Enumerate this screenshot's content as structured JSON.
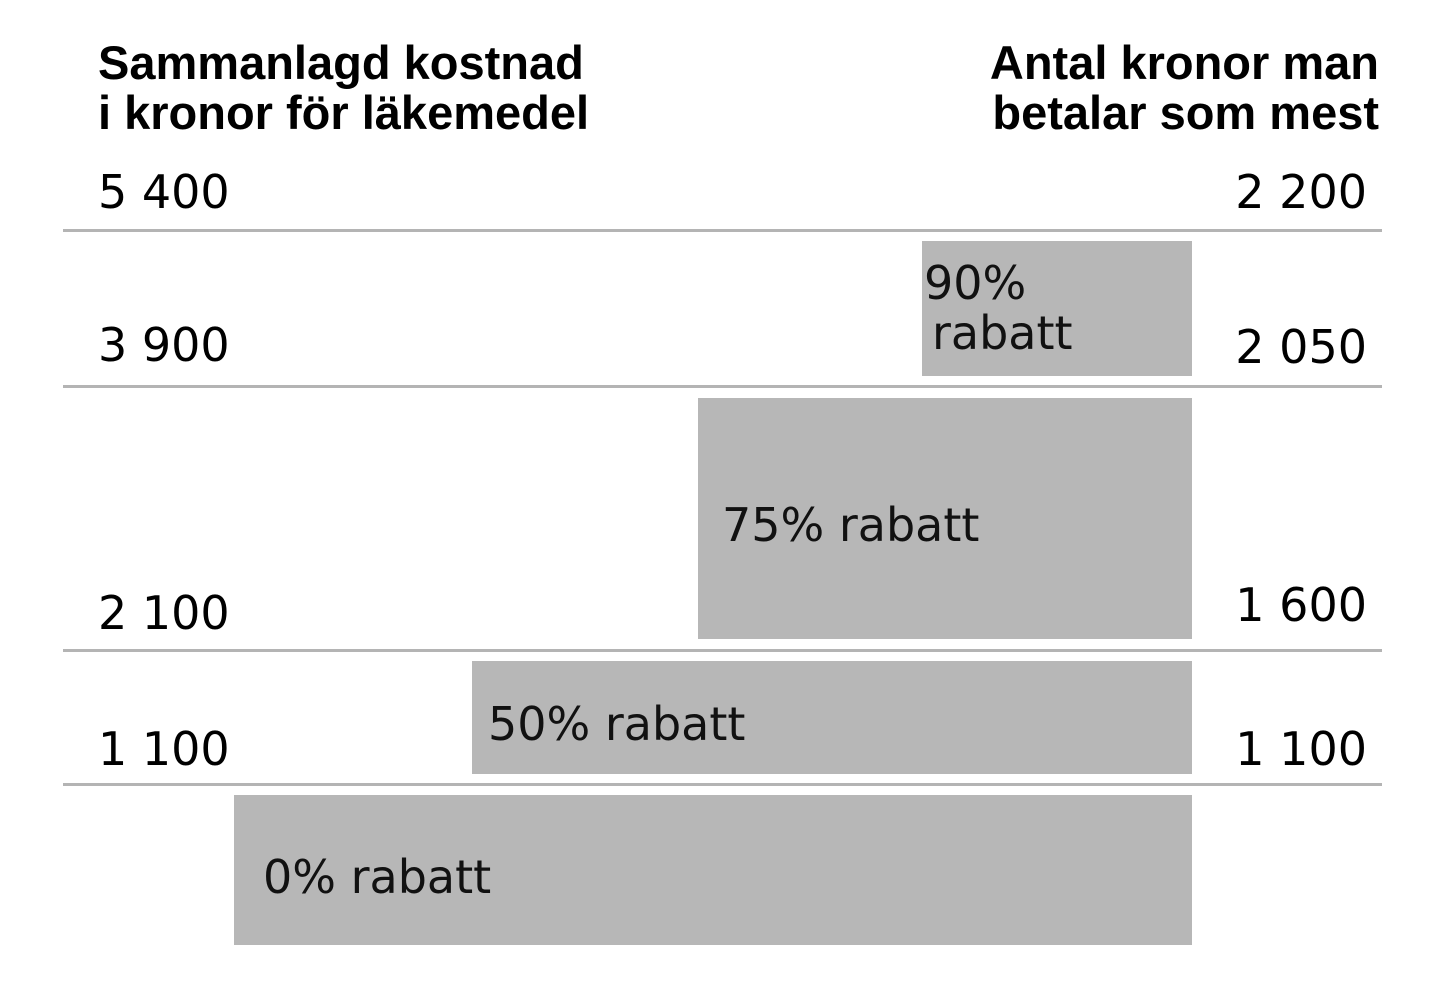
{
  "headings": {
    "left": [
      "Sammanlagd kostnad",
      "i kronor för läkemedel"
    ],
    "right": [
      "Antal kronor man",
      "betalar som mest"
    ]
  },
  "levels": [
    {
      "cost": "5 400",
      "max_pay": "2 200"
    },
    {
      "cost": "3 900",
      "max_pay": "2 050"
    },
    {
      "cost": "2 100",
      "max_pay": "1 600"
    },
    {
      "cost": "1 100",
      "max_pay": "1 100"
    }
  ],
  "bands": [
    {
      "lines": [
        "90%",
        "rabatt"
      ],
      "discount_pct": 90
    },
    {
      "lines": [
        "75% rabatt"
      ],
      "discount_pct": 75
    },
    {
      "lines": [
        "50% rabatt"
      ],
      "discount_pct": 50
    },
    {
      "lines": [
        "0% rabatt"
      ],
      "discount_pct": 0
    }
  ],
  "colors": {
    "band_fill": "#b7b7b7",
    "divider": "#b4b4b4",
    "text": "#000000"
  }
}
